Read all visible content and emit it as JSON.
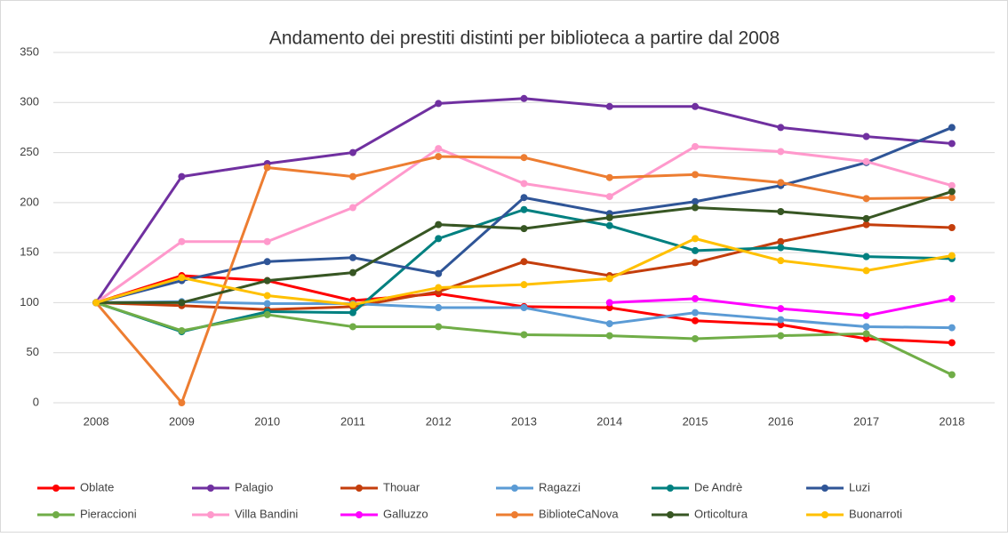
{
  "chart_data": {
    "type": "line",
    "title": "Andamento dei prestiti distinti per biblioteca a partire dal 2008",
    "categories": [
      "2008",
      "2009",
      "2010",
      "2011",
      "2012",
      "2013",
      "2014",
      "2015",
      "2016",
      "2017",
      "2018"
    ],
    "ylim": [
      0,
      350
    ],
    "yticks": [
      0,
      50,
      100,
      150,
      200,
      250,
      300,
      350
    ],
    "grid": true,
    "legend": "bottom",
    "series": [
      {
        "name": "Oblate",
        "color": "#ff0000",
        "values": [
          100,
          127,
          122,
          102,
          109,
          96,
          95,
          82,
          78,
          64,
          60
        ]
      },
      {
        "name": "Palagio",
        "color": "#7030a0",
        "values": [
          100,
          226,
          239,
          250,
          299,
          304,
          296,
          296,
          275,
          266,
          259
        ]
      },
      {
        "name": "Thouar",
        "color": "#c43e0c",
        "values": [
          100,
          97,
          93,
          96,
          111,
          141,
          127,
          140,
          161,
          178,
          175
        ]
      },
      {
        "name": "Ragazzi",
        "color": "#5b9bd5",
        "values": [
          100,
          101,
          99,
          99,
          95,
          95,
          79,
          90,
          83,
          76,
          75
        ]
      },
      {
        "name": "De Andrè",
        "color": "#008080",
        "values": [
          100,
          71,
          91,
          90,
          164,
          193,
          177,
          152,
          155,
          146,
          144
        ]
      },
      {
        "name": "Luzi",
        "color": "#2f5597",
        "values": [
          100,
          122,
          141,
          145,
          129,
          205,
          189,
          201,
          217,
          240,
          275
        ]
      },
      {
        "name": "Pieraccioni",
        "color": "#70ad47",
        "values": [
          100,
          72,
          88,
          76,
          76,
          68,
          67,
          64,
          67,
          69,
          28
        ]
      },
      {
        "name": "Villa Bandini",
        "color": "#ff99cc",
        "values": [
          100,
          161,
          161,
          195,
          254,
          219,
          206,
          256,
          251,
          241,
          217
        ]
      },
      {
        "name": "Galluzzo",
        "color": "#ff00ff",
        "values": [
          null,
          null,
          null,
          null,
          null,
          null,
          100,
          104,
          94,
          87,
          104
        ]
      },
      {
        "name": "BiblioteCaNova",
        "color": "#ed7d31",
        "values": [
          100,
          0,
          235,
          226,
          246,
          245,
          225,
          228,
          220,
          204,
          205
        ]
      },
      {
        "name": "Orticoltura",
        "color": "#375623",
        "values": [
          100,
          100,
          122,
          130,
          178,
          174,
          185,
          195,
          191,
          184,
          211
        ]
      },
      {
        "name": "Buonarroti",
        "color": "#ffc000",
        "values": [
          100,
          125,
          107,
          98,
          115,
          118,
          124,
          164,
          142,
          132,
          147
        ]
      }
    ]
  }
}
